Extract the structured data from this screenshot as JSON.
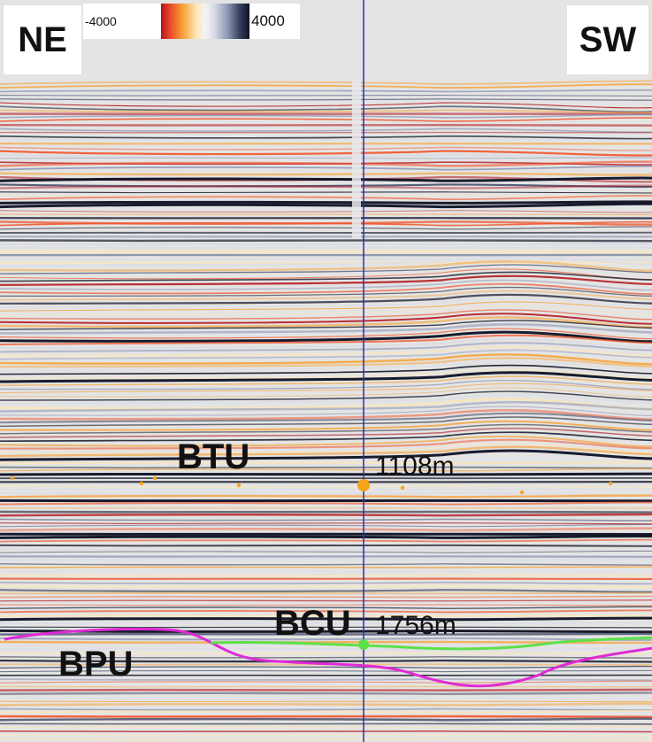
{
  "orientation": {
    "left": "NE",
    "right": "SW"
  },
  "colorbar": {
    "min_label": "-4000",
    "max_label": "4000",
    "colors": [
      "#b3131b",
      "#f0542a",
      "#f7a33a",
      "#fde6b6",
      "#f5f5f5",
      "#8f98b6",
      "#0d1022"
    ]
  },
  "horizons": {
    "btu": {
      "label": "BTU",
      "depth_label": "1108m",
      "marker_color": "#f7a41c"
    },
    "bcu": {
      "label": "BCU",
      "depth_label": "1756m",
      "line_color": "#5ee04a"
    },
    "bpu": {
      "label": "BPU",
      "line_color": "#e02ad6"
    }
  },
  "well_color": "#2b2fae"
}
